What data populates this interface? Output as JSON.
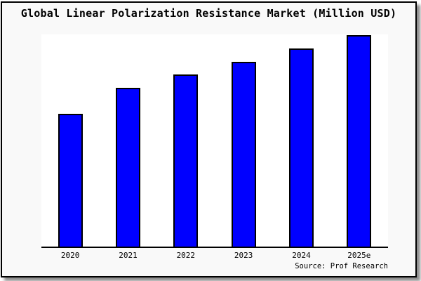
{
  "window": {
    "background_color": "#f9f9f9",
    "plot_background_color": "#ffffff",
    "border_color": "#000000",
    "shadow_color": "#888888"
  },
  "chart_data": {
    "type": "bar",
    "title": "Global Linear Polarization Resistance Market (Million USD)",
    "categories": [
      "2020",
      "2021",
      "2022",
      "2023",
      "2024",
      "2025e"
    ],
    "values": [
      62.6,
      74.8,
      81.1,
      87.1,
      93.4,
      99.7
    ],
    "value_note": "No y-axis scale is shown in the chart; values are estimated bar heights as percent of plot height (tallest bar = 2025e).",
    "xlabel": "",
    "ylabel": "",
    "ylim": [
      0,
      100
    ],
    "grid": false,
    "legend": null,
    "bar_color": "#0000ff",
    "bar_border_color": "#000000",
    "source": "Source: Prof Research"
  }
}
